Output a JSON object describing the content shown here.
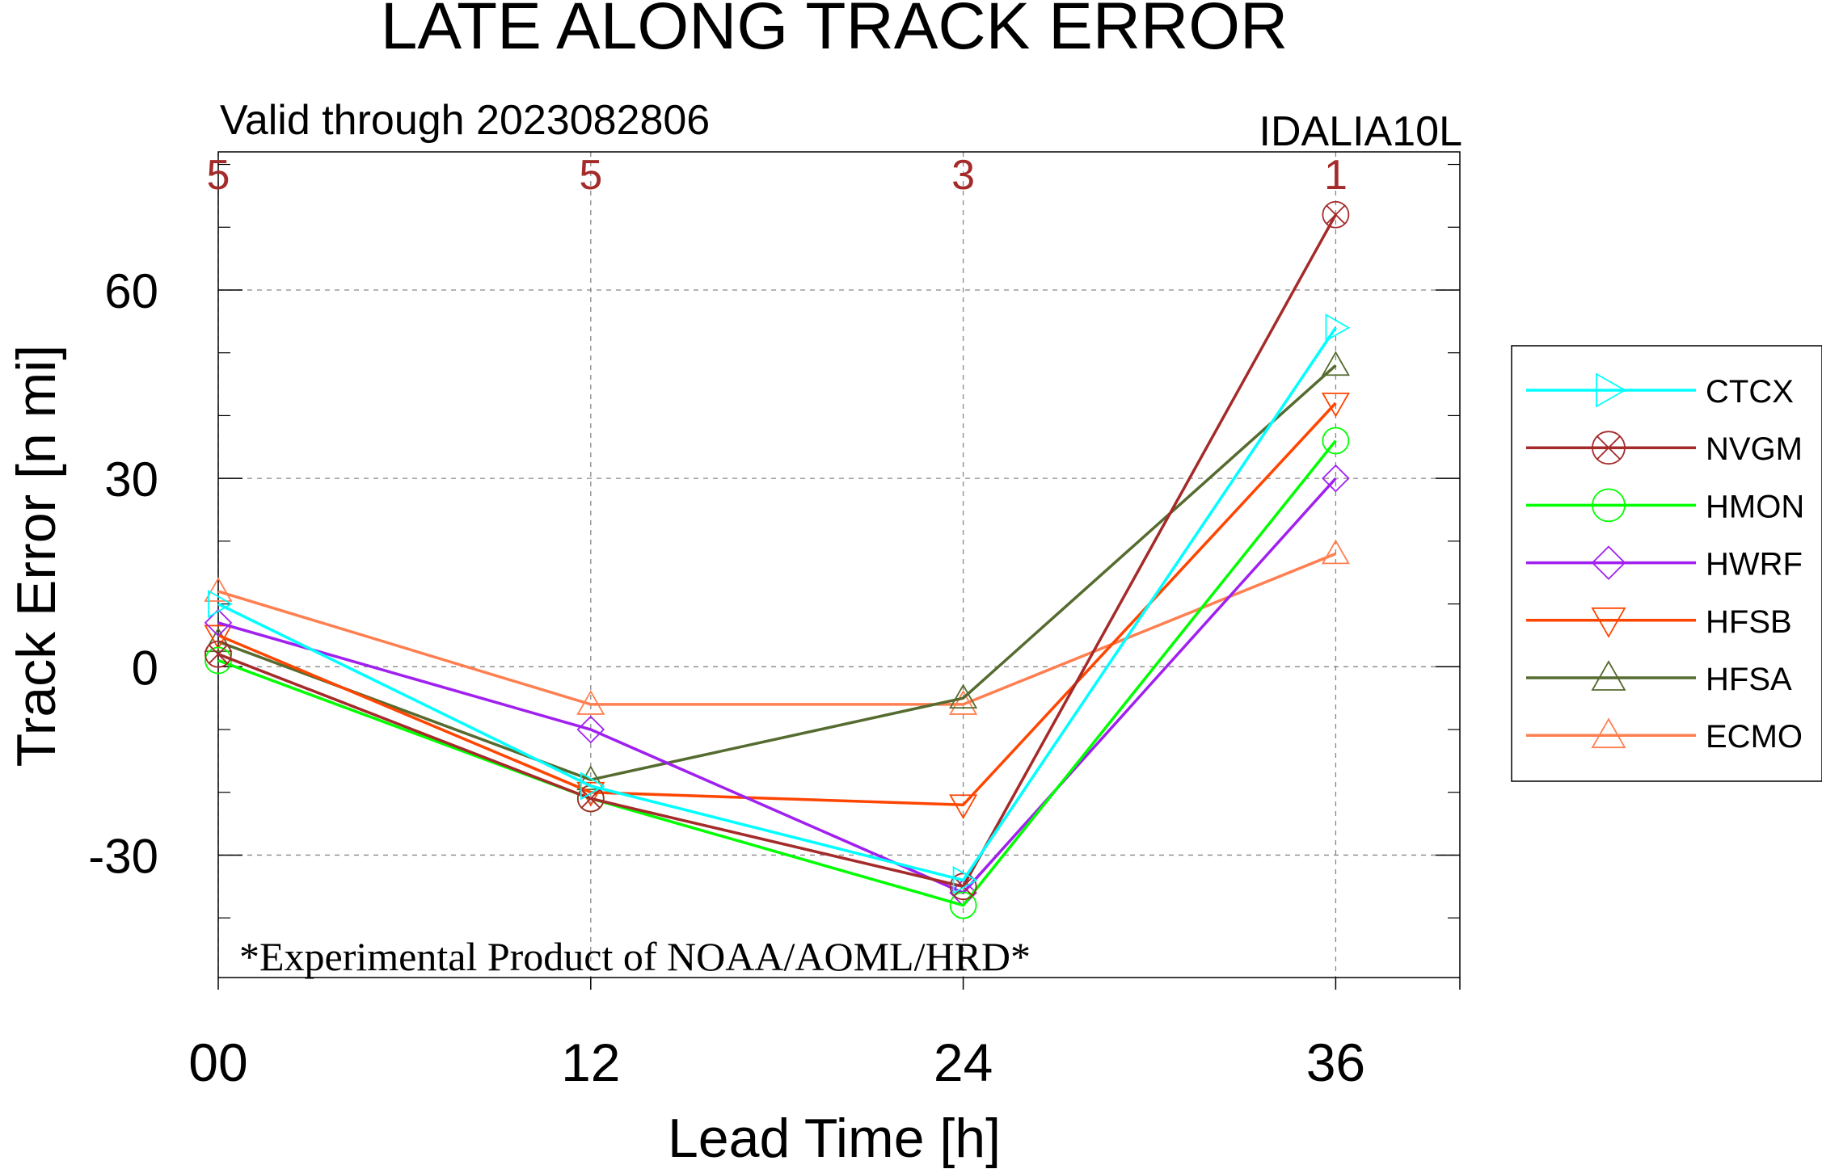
{
  "chart_data": {
    "type": "line",
    "title": "LATE ALONG TRACK ERROR",
    "subtitle": "Valid through 2023082806",
    "storm_label": "IDALIA10L",
    "xlabel": "Lead Time [h]",
    "ylabel": "Track Error [n mi]",
    "footer_note": "*Experimental Product of NOAA/AOML/HRD*",
    "x": [
      0,
      12,
      24,
      36
    ],
    "x_tick_labels": [
      "00",
      "12",
      "24",
      "36"
    ],
    "xlim": [
      0,
      40
    ],
    "ylim": [
      -49.5,
      82
    ],
    "y_ticks": [
      -30,
      0,
      30,
      60
    ],
    "y_tick_labels": [
      "-30",
      "0",
      "30",
      "60"
    ],
    "sample_counts": [
      "5",
      "5",
      "3",
      "1"
    ],
    "sample_count_color": "#a52a2a",
    "grid": true,
    "legend_position": "right",
    "series": [
      {
        "name": "CTCX",
        "color": "#00ffff",
        "marker": "triangle-right",
        "values": [
          10,
          -19,
          -34,
          54
        ]
      },
      {
        "name": "NVGM",
        "color": "#a52a2a",
        "marker": "circle-x",
        "values": [
          2,
          -21,
          -35,
          72
        ]
      },
      {
        "name": "HMON",
        "color": "#00ff00",
        "marker": "circle",
        "values": [
          1,
          -21,
          -38,
          36
        ]
      },
      {
        "name": "HWRF",
        "color": "#a020f0",
        "marker": "diamond",
        "values": [
          7,
          -10,
          -36,
          30
        ]
      },
      {
        "name": "HFSB",
        "color": "#ff4500",
        "marker": "triangle-down",
        "values": [
          5,
          -20,
          -22,
          42
        ]
      },
      {
        "name": "HFSA",
        "color": "#556b2f",
        "marker": "triangle-up",
        "values": [
          4,
          -18,
          -5,
          48
        ]
      },
      {
        "name": "ECMO",
        "color": "#ff7f50",
        "marker": "triangle-up",
        "values": [
          12,
          -6,
          -6,
          18
        ]
      }
    ]
  }
}
